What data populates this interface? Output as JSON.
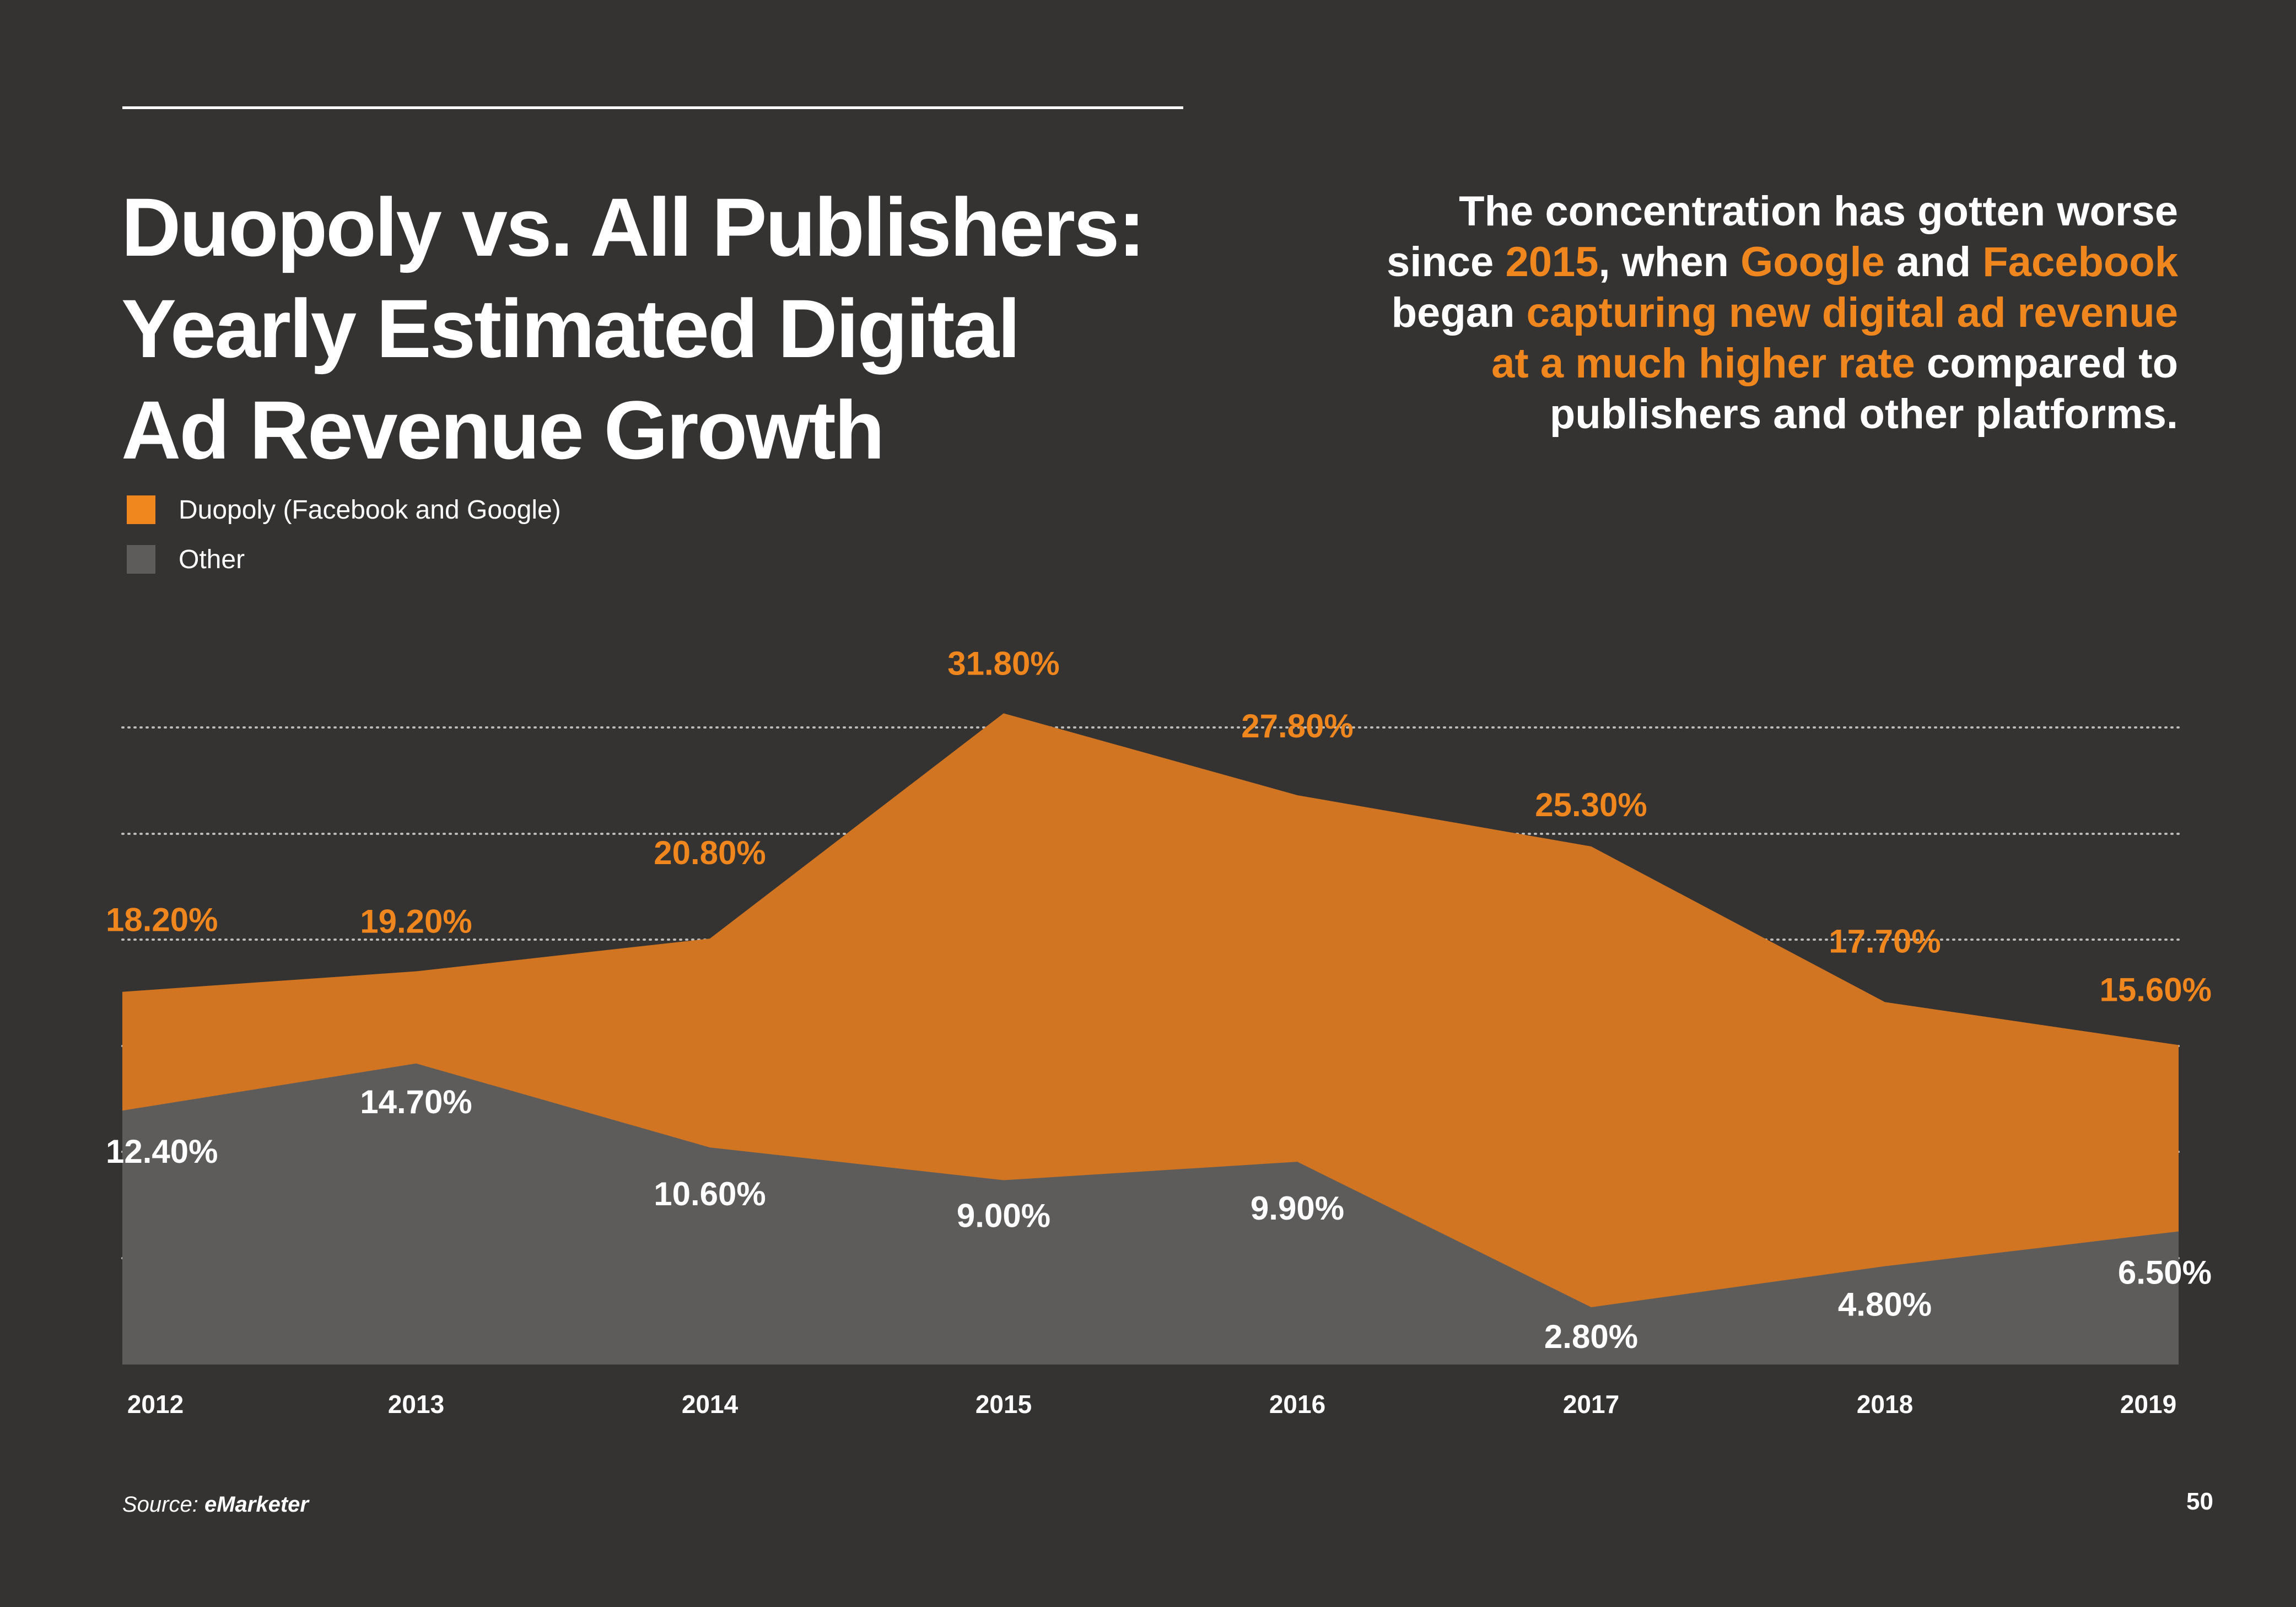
{
  "title": {
    "lines": [
      "Duopoly vs. All Publishers:",
      "Yearly Estimated Digital",
      "Ad Revenue Growth"
    ]
  },
  "callout": {
    "line1": "The concentration has gotten worse",
    "line2_a": "since ",
    "line2_b": "2015",
    "line2_c": ", when ",
    "line2_d": "Google",
    "line2_e": " and ",
    "line2_f": "Facebook",
    "line3_a": "began ",
    "line3_b": "capturing new digital ad revenue",
    "line4_a": "at a much higher rate",
    "line4_b": " compared to",
    "line5": "publishers and other platforms."
  },
  "colors": {
    "background": "#353331",
    "duopoly": "#d17522",
    "duopoly_label": "#f0861e",
    "other": "#5e5c5a",
    "text": "#ffffff"
  },
  "legend": {
    "duopoly": "Duopoly (Facebook and Google)",
    "other": "Other"
  },
  "chart_data": {
    "type": "area",
    "x": [
      "2012",
      "2013",
      "2014",
      "2015",
      "2016",
      "2017",
      "2018",
      "2019"
    ],
    "series": [
      {
        "name": "Duopoly (Facebook and Google)",
        "values": [
          18.2,
          19.2,
          20.8,
          31.8,
          27.8,
          25.3,
          17.7,
          15.6
        ],
        "labels": [
          "18.20%",
          "19.20%",
          "20.80%",
          "31.80%",
          "27.80%",
          "25.30%",
          "17.70%",
          "15.60%"
        ],
        "color": "#d17522"
      },
      {
        "name": "Other",
        "values": [
          12.4,
          14.7,
          10.6,
          9.0,
          9.9,
          2.8,
          4.8,
          6.5
        ],
        "labels": [
          "12.40%",
          "14.70%",
          "10.60%",
          "9.00%",
          "9.90%",
          "2.80%",
          "4.80%",
          "6.50%"
        ],
        "color": "#5e5c5a"
      }
    ],
    "ylim": [
      0,
      33.8
    ],
    "grid": true,
    "legend_position": "top-left"
  },
  "footer": {
    "source_prefix": "Source:",
    "source_name": "eMarketer",
    "page_number": "50"
  }
}
